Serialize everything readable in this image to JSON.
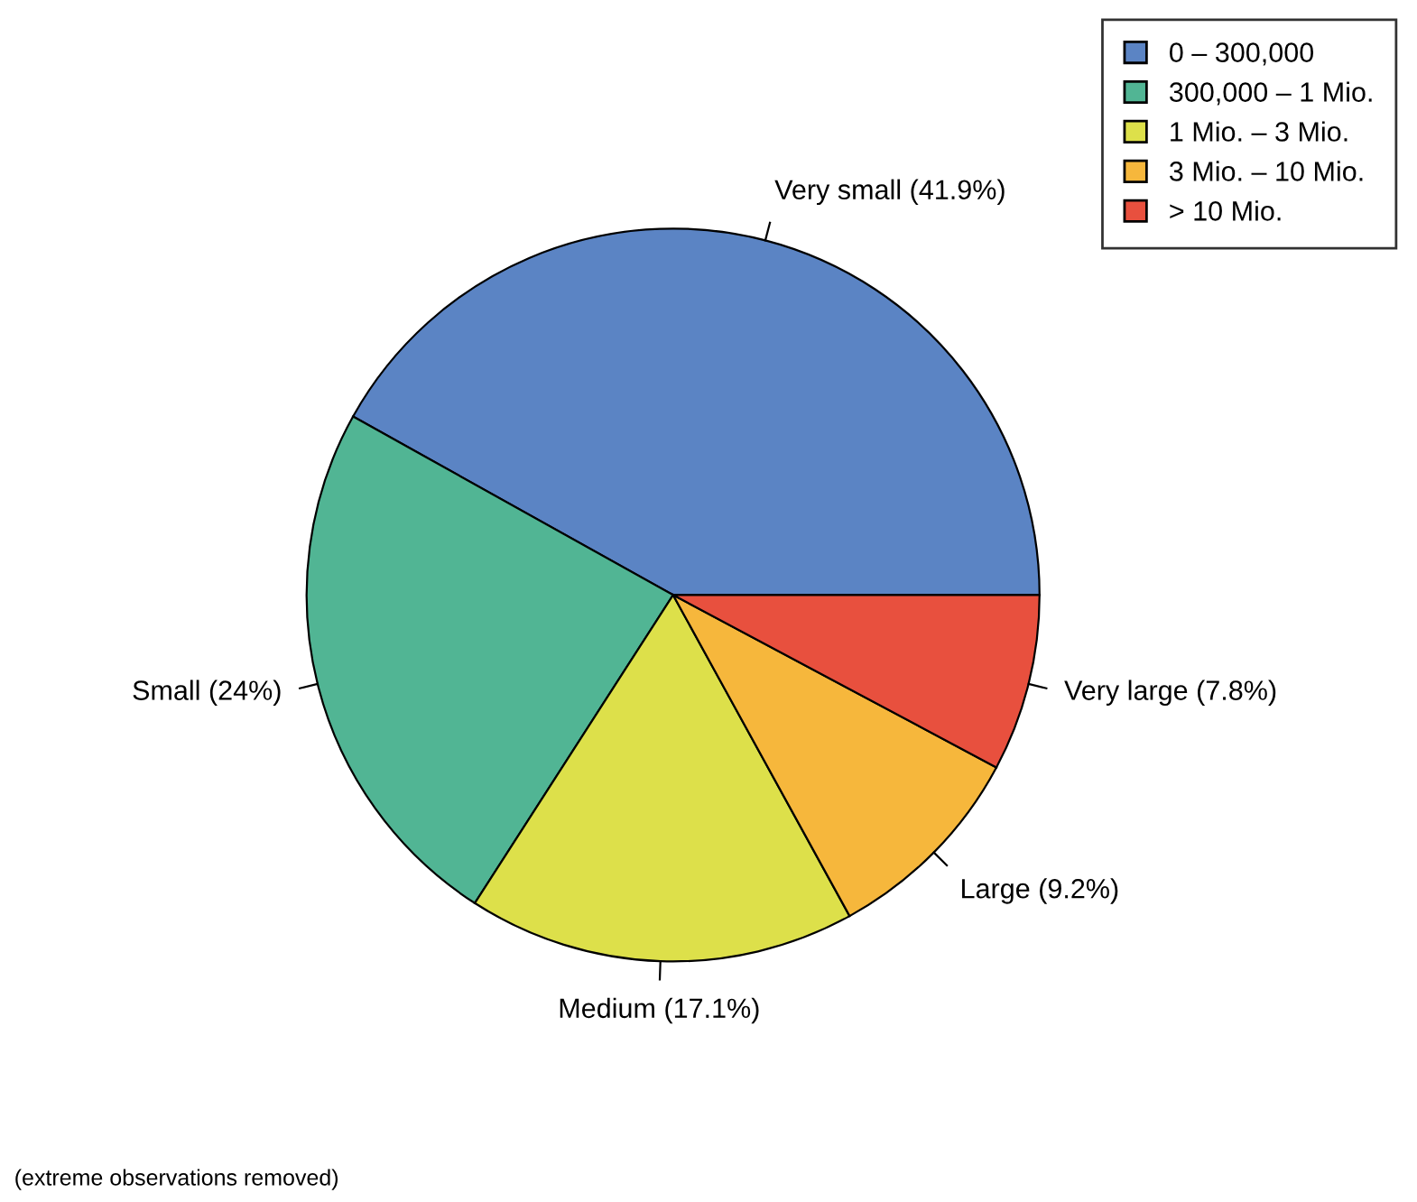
{
  "chart_data": {
    "type": "pie",
    "categories": [
      "0 – 300,000",
      "300,000 – 1 Mio.",
      "1 Mio. – 3 Mio.",
      "3 Mio. – 10 Mio.",
      "> 10 Mio."
    ],
    "values": [
      41.9,
      24,
      17.1,
      9.2,
      7.8
    ],
    "colors": [
      "#5b84c4",
      "#51b594",
      "#dde04a",
      "#f6b73c",
      "#e8503e"
    ],
    "value_labels": [
      "Very small (41.9%)",
      "Small (24%)",
      "Medium (17.1%)",
      "Large (9.2%)",
      "Very large (7.8%)"
    ],
    "legend": "top right",
    "annotations": [
      "(extreme observations removed)"
    ]
  }
}
